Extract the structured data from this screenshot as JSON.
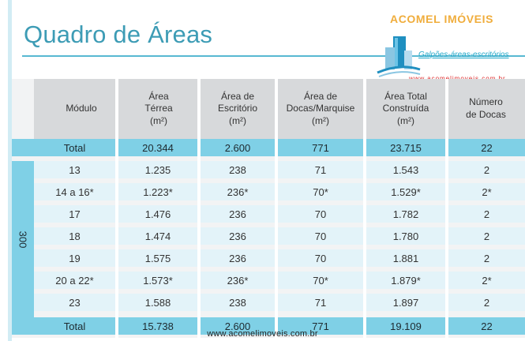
{
  "title": "Quadro de Áreas",
  "logo": {
    "name": "ACOMEL IMÓVEIS",
    "tagline": "Galpões-áreas-escritórios",
    "url": "www.acomelimoveis.com.br"
  },
  "table": {
    "headers": [
      [
        "Módulo"
      ],
      [
        "Área",
        "Térrea",
        "(m²)"
      ],
      [
        "Área de",
        "Escritório",
        "(m²)"
      ],
      [
        "Área de",
        "Docas/Marquise",
        "(m²)"
      ],
      [
        "Área Total",
        "Construída",
        "(m²)"
      ],
      [
        "Número",
        "de Docas"
      ]
    ],
    "group_label": "300",
    "rows": [
      [
        "Total",
        "20.344",
        "2.600",
        "771",
        "23.715",
        "22"
      ],
      [
        "13",
        "1.235",
        "238",
        "71",
        "1.543",
        "2"
      ],
      [
        "14 a 16*",
        "1.223*",
        "236*",
        "70*",
        "1.529*",
        "2*"
      ],
      [
        "17",
        "1.476",
        "236",
        "70",
        "1.782",
        "2"
      ],
      [
        "18",
        "1.474",
        "236",
        "70",
        "1.780",
        "2"
      ],
      [
        "19",
        "1.575",
        "236",
        "70",
        "1.881",
        "2"
      ],
      [
        "20 a 22*",
        "1.573*",
        "236*",
        "70*",
        "1.879*",
        "2*"
      ],
      [
        "23",
        "1.588",
        "238",
        "71",
        "1.897",
        "2"
      ],
      [
        "Total",
        "15.738",
        "2.600",
        "771",
        "19.109",
        "22"
      ]
    ]
  },
  "footer": "www.acomelimoveis.com.br",
  "colors": {
    "title": "#3d9cb5",
    "total_band": "#7fd0e6",
    "row_band": "#e3f3f9",
    "logo_name": "#f0ad3c",
    "logo_url": "#e02b2b"
  }
}
